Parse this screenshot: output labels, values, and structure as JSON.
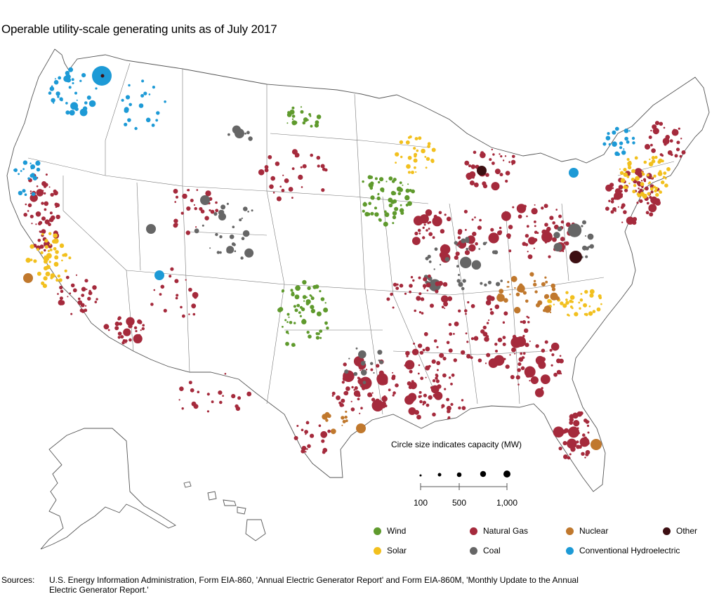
{
  "title": "Operable utility-scale generating units as of July 2017",
  "scale": {
    "title": "Circle size indicates capacity (MW)",
    "labels": [
      "100",
      "500",
      "1,000"
    ]
  },
  "legend": [
    {
      "label": "Wind",
      "color": "#5f9a2d"
    },
    {
      "label": "Natural Gas",
      "color": "#a52a3c"
    },
    {
      "label": "Nuclear",
      "color": "#c0782d"
    },
    {
      "label": "Other",
      "color": "#3d0f12"
    },
    {
      "label": "Solar",
      "color": "#f2c01e"
    },
    {
      "label": "Coal",
      "color": "#666666"
    },
    {
      "label": "Conventional Hydroelectric",
      "color": "#1d9ad6"
    }
  ],
  "sources": {
    "label": "Sources:",
    "text": "U.S. Energy Information Administration, Form EIA-860, 'Annual Electric Generator Report' and Form EIA-860M, 'Monthly Update to the Annual Electric Generator Report.'"
  }
}
